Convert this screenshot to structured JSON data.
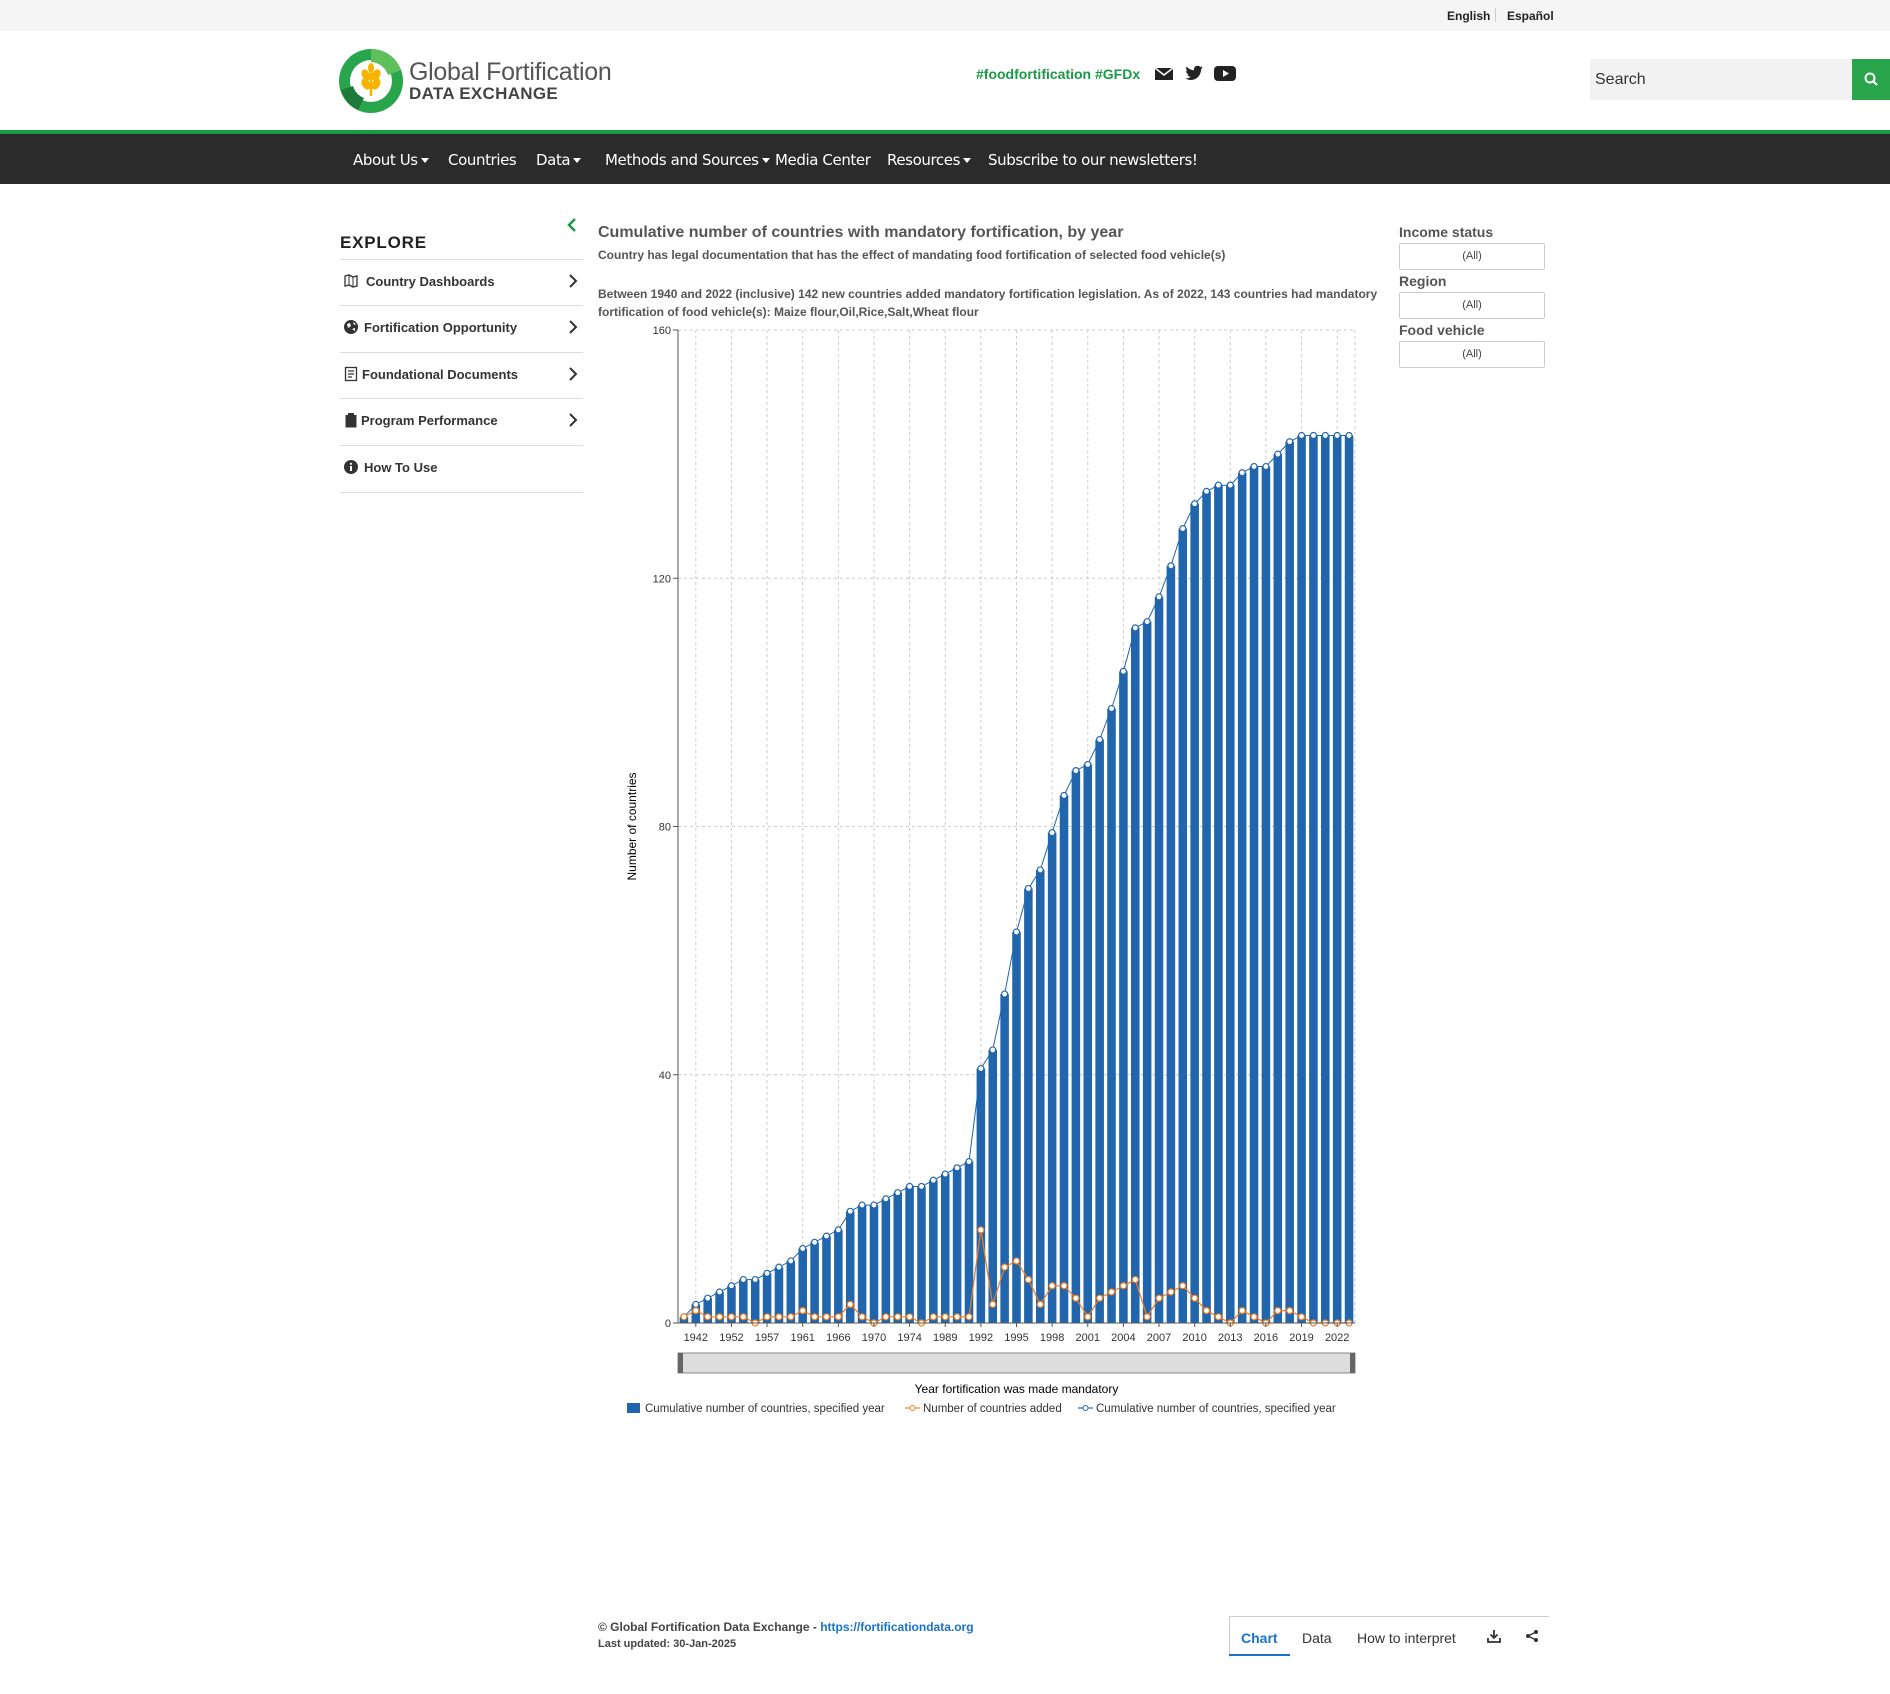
{
  "lang": {
    "english": "English",
    "espanol": "Español"
  },
  "header": {
    "logo_line1": "Global Fortification",
    "logo_line2": "DATA EXCHANGE",
    "hashtags": "#foodfortification #GFDx",
    "search_placeholder": "Search"
  },
  "nav": {
    "items": [
      {
        "label": "About Us",
        "dropdown": true
      },
      {
        "label": "Countries",
        "dropdown": false
      },
      {
        "label": "Data",
        "dropdown": true
      },
      {
        "label": "Methods and Sources",
        "dropdown": true
      },
      {
        "label": "Media Center",
        "dropdown": false
      },
      {
        "label": "Resources",
        "dropdown": true
      },
      {
        "label": "Subscribe to our newsletters!",
        "dropdown": false
      }
    ]
  },
  "sidebar": {
    "title": "EXPLORE",
    "items": [
      {
        "label": "Country Dashboards",
        "icon": "map-icon",
        "chevron": true
      },
      {
        "label": "Fortification Opportunity",
        "icon": "globe-icon",
        "chevron": true
      },
      {
        "label": "Foundational Documents",
        "icon": "document-icon",
        "chevron": true
      },
      {
        "label": "Program Performance",
        "icon": "clipboard-icon",
        "chevron": true
      },
      {
        "label": "How To Use",
        "icon": "info-icon",
        "chevron": false
      }
    ]
  },
  "chart_header": {
    "title": "Cumulative number of countries with mandatory fortification, by year",
    "subtitle": "Country has legal documentation that has the effect of mandating food fortification of selected food vehicle(s)",
    "note": "Between 1940 and 2022 (inclusive) 142 new countries added mandatory fortification legislation. As of 2022, 143 countries had mandatory fortification of food vehicle(s): Maize flour,Oil,Rice,Salt,Wheat flour"
  },
  "filters": [
    {
      "label": "Income status",
      "value": "(All)"
    },
    {
      "label": "Region",
      "value": "(All)"
    },
    {
      "label": "Food vehicle",
      "value": "(All)"
    }
  ],
  "chart_data": {
    "type": "bar",
    "xlabel": "Year fortification was made mandatory",
    "ylabel": "Number of countries",
    "ylim": [
      0,
      160
    ],
    "yticks": [
      0,
      40,
      80,
      120,
      160
    ],
    "xtick_labels": [
      "1942",
      "1952",
      "1957",
      "1961",
      "1966",
      "1970",
      "1974",
      "1989",
      "1992",
      "1995",
      "1998",
      "2001",
      "2004",
      "2007",
      "2010",
      "2013",
      "2016",
      "2019",
      "2022"
    ],
    "grid": true,
    "legend_position": "bottom",
    "colors": {
      "bar": "#2166ac",
      "added": "#f07d1e",
      "line": "#2166ac"
    },
    "series": [
      {
        "name": "Cumulative number of countries, specified year",
        "type": "bar",
        "values": [
          1,
          3,
          4,
          5,
          6,
          7,
          7,
          8,
          9,
          10,
          12,
          13,
          14,
          15,
          18,
          19,
          19,
          20,
          21,
          22,
          22,
          23,
          24,
          25,
          26,
          41,
          44,
          53,
          63,
          70,
          73,
          79,
          85,
          89,
          90,
          94,
          99,
          105,
          112,
          113,
          117,
          122,
          128,
          132,
          134,
          135,
          135,
          137,
          138,
          138,
          140,
          142,
          143,
          143,
          143,
          143,
          143
        ]
      },
      {
        "name": "Number of countries added",
        "type": "line",
        "values": [
          1,
          2,
          1,
          1,
          1,
          1,
          0,
          1,
          1,
          1,
          2,
          1,
          1,
          1,
          3,
          1,
          0,
          1,
          1,
          1,
          0,
          1,
          1,
          1,
          1,
          15,
          3,
          9,
          10,
          7,
          3,
          6,
          6,
          4,
          1,
          4,
          5,
          6,
          7,
          1,
          4,
          5,
          6,
          4,
          2,
          1,
          0,
          2,
          1,
          0,
          2,
          2,
          1,
          0,
          0,
          0,
          0
        ]
      },
      {
        "name": "Cumulative number of countries, specified year",
        "type": "line",
        "values": [
          1,
          3,
          4,
          5,
          6,
          7,
          7,
          8,
          9,
          10,
          12,
          13,
          14,
          15,
          18,
          19,
          19,
          20,
          21,
          22,
          22,
          23,
          24,
          25,
          26,
          41,
          44,
          53,
          63,
          70,
          73,
          79,
          85,
          89,
          90,
          94,
          99,
          105,
          112,
          113,
          117,
          122,
          128,
          132,
          134,
          135,
          135,
          137,
          138,
          138,
          140,
          142,
          143,
          143,
          143,
          143,
          143
        ]
      }
    ]
  },
  "footer": {
    "copyright": "© Global Fortification Data Exchange - ",
    "link": "https://fortificationdata.org",
    "updated": "Last updated: 30-Jan-2025",
    "tabs": [
      "Chart",
      "Data",
      "How to interpret"
    ]
  }
}
